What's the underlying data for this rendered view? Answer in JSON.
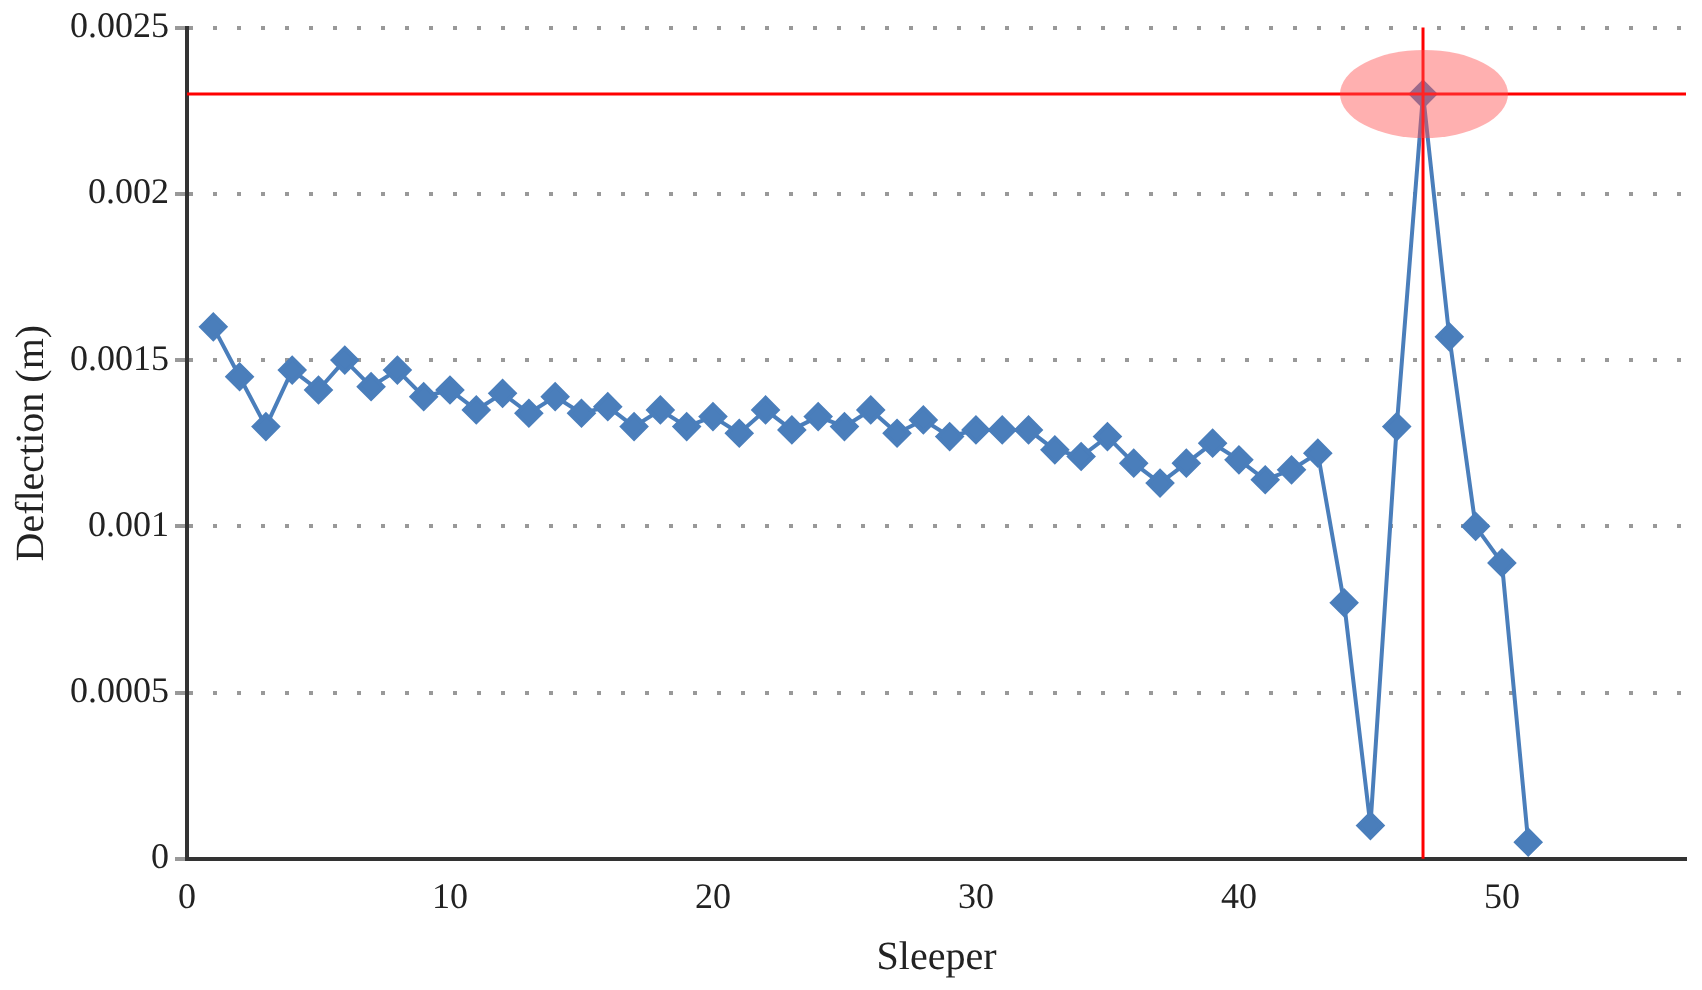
{
  "chart_data": {
    "type": "line",
    "xlabel": "Sleeper",
    "ylabel": "Deflection (m)",
    "x": [
      1,
      2,
      3,
      4,
      5,
      6,
      7,
      8,
      9,
      10,
      11,
      12,
      13,
      14,
      15,
      16,
      17,
      18,
      19,
      20,
      21,
      22,
      23,
      24,
      25,
      26,
      27,
      28,
      29,
      30,
      31,
      32,
      33,
      34,
      35,
      36,
      37,
      38,
      39,
      40,
      41,
      42,
      43,
      44,
      45,
      46,
      47,
      48,
      49,
      50,
      51
    ],
    "series": [
      {
        "color": "#4a7ebb",
        "values": [
          0.0016,
          0.00145,
          0.0013,
          0.00147,
          0.00141,
          0.0015,
          0.00142,
          0.00147,
          0.00139,
          0.00141,
          0.00135,
          0.0014,
          0.00134,
          0.00139,
          0.00134,
          0.00136,
          0.0013,
          0.00135,
          0.0013,
          0.00133,
          0.00128,
          0.00135,
          0.00129,
          0.00133,
          0.0013,
          0.00135,
          0.00128,
          0.00132,
          0.00127,
          0.00129,
          0.00129,
          0.00129,
          0.00123,
          0.00121,
          0.00127,
          0.00119,
          0.00113,
          0.00119,
          0.00125,
          0.0012,
          0.00114,
          0.00117,
          0.00122,
          0.00077,
          0.0001,
          0.0013,
          0.0023,
          0.00157,
          0.001,
          0.00089,
          5e-05
        ]
      }
    ],
    "xlim": [
      0,
      57
    ],
    "xticks": [
      0,
      10,
      20,
      30,
      40,
      50
    ],
    "ylim": [
      0,
      0.0025
    ],
    "yticks": [
      0,
      0.0005,
      0.001,
      0.0015,
      0.002,
      0.0025
    ],
    "grid": "y",
    "marker": "diamond",
    "line_style": "solid",
    "legend": false,
    "ref_lines": [
      {
        "axis": "y",
        "value": 0.0023,
        "color": "#ff0000"
      },
      {
        "axis": "x",
        "value": 47,
        "color": "#ff0000"
      }
    ]
  }
}
